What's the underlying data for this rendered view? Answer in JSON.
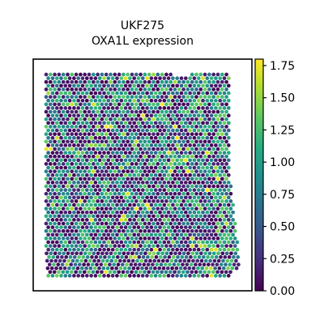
{
  "chart_data": {
    "type": "scatter",
    "title_line1": "UKF275",
    "title_line2": "OXA1L expression",
    "xlabel": "",
    "ylabel": "",
    "grid": false,
    "colormap": "viridis",
    "colorbar": {
      "range": [
        0,
        1.8
      ],
      "ticks": [
        0.0,
        0.25,
        0.5,
        0.75,
        1.0,
        1.25,
        1.5,
        1.75
      ],
      "tick_labels": [
        "0.00",
        "0.25",
        "0.50",
        "0.75",
        "1.00",
        "1.25",
        "1.50",
        "1.75"
      ]
    },
    "spots": {
      "value_range": [
        0,
        1.8
      ],
      "description_free": true
    }
  }
}
